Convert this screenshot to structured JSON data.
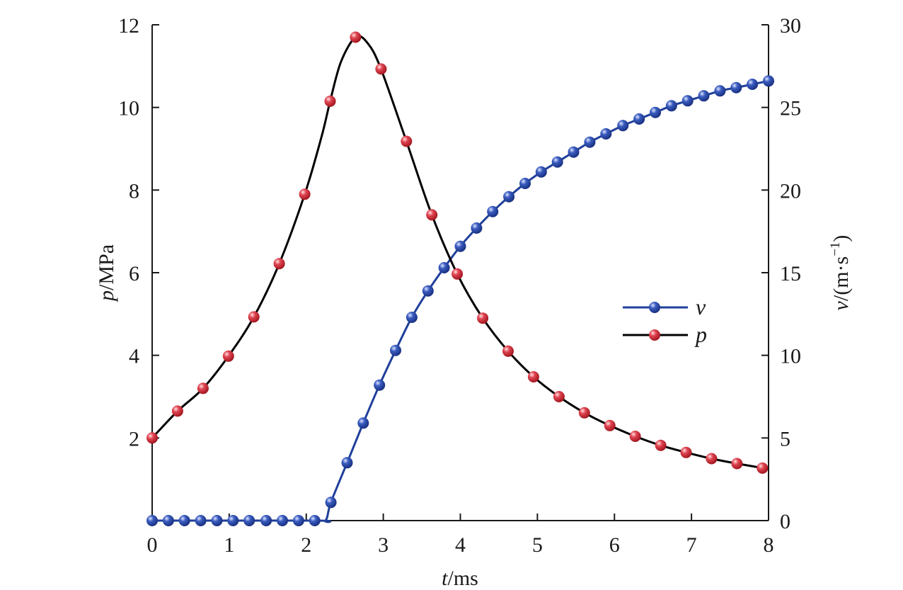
{
  "colors": {
    "v_series": "#1f3f9a",
    "p_series": "#000000",
    "v_marker": "#2448a8",
    "p_marker": "#d02430",
    "axis": "#1a1a1a"
  },
  "chart_data": {
    "type": "line",
    "x_axis": {
      "label_var": "t",
      "label_unit": "/ms",
      "range": [
        0,
        8
      ],
      "ticks": [
        "0",
        "1",
        "2",
        "3",
        "4",
        "5",
        "6",
        "7",
        "8"
      ]
    },
    "y_axis_left": {
      "label_var": "p",
      "label_unit": "/MPa",
      "range": [
        0,
        12
      ],
      "ticks": [
        "2",
        "4",
        "6",
        "8",
        "10",
        "12"
      ]
    },
    "y_axis_right": {
      "label_var": "v",
      "label_unit": "/(m·s",
      "label_sup": "−1",
      "label_close": ")",
      "range": [
        0,
        30
      ],
      "ticks": [
        "0",
        "5",
        "10",
        "15",
        "20",
        "25",
        "30"
      ]
    },
    "legend_position": "center-right",
    "grid": false,
    "series": [
      {
        "name": "v",
        "axis": "right",
        "x": [
          0,
          0.21,
          0.42,
          0.63,
          0.84,
          1.05,
          1.26,
          1.48,
          1.69,
          1.9,
          2.11,
          2.32,
          2.53,
          2.74,
          2.95,
          3.16,
          3.37,
          3.58,
          3.79,
          4.0,
          4.21,
          4.42,
          4.63,
          4.84,
          5.05,
          5.26,
          5.47,
          5.68,
          5.89,
          6.11,
          6.32,
          6.53,
          6.74,
          6.95,
          7.16,
          7.37,
          7.58,
          7.79,
          8.0
        ],
        "y": [
          0,
          0,
          0,
          0,
          0,
          0,
          0,
          0,
          0,
          0,
          0,
          1.1,
          3.5,
          5.9,
          8.2,
          10.3,
          12.3,
          13.9,
          15.3,
          16.6,
          17.7,
          18.7,
          19.6,
          20.4,
          21.1,
          21.7,
          22.3,
          22.9,
          23.4,
          23.9,
          24.3,
          24.7,
          25.1,
          25.4,
          25.7,
          26.0,
          26.2,
          26.4,
          26.6
        ]
      },
      {
        "name": "p",
        "axis": "left",
        "x": [
          0,
          0.33,
          0.66,
          0.99,
          1.32,
          1.65,
          1.98,
          2.31,
          2.64,
          2.97,
          3.3,
          3.63,
          3.96,
          4.29,
          4.62,
          4.95,
          5.28,
          5.61,
          5.94,
          6.27,
          6.6,
          6.93,
          7.26,
          7.59,
          7.92
        ],
        "y": [
          2.0,
          2.65,
          3.2,
          3.98,
          4.93,
          6.22,
          7.9,
          10.15,
          11.7,
          10.93,
          9.18,
          7.4,
          5.97,
          4.9,
          4.1,
          3.48,
          3.0,
          2.61,
          2.3,
          2.04,
          1.82,
          1.65,
          1.5,
          1.38,
          1.27
        ]
      }
    ],
    "curves": {
      "p": {
        "x": [
          0,
          0.33,
          0.66,
          0.99,
          1.32,
          1.65,
          1.98,
          2.2,
          2.31,
          2.45,
          2.64,
          2.8,
          2.97,
          3.3,
          3.63,
          3.96,
          4.29,
          4.62,
          4.95,
          5.28,
          5.61,
          5.94,
          6.27,
          6.6,
          6.93,
          7.26,
          7.59,
          8.0
        ],
        "y": [
          2.0,
          2.65,
          3.2,
          3.98,
          4.93,
          6.22,
          7.9,
          9.3,
          10.15,
          11.1,
          11.7,
          11.55,
          10.93,
          9.18,
          7.4,
          5.97,
          4.9,
          4.1,
          3.48,
          3.0,
          2.61,
          2.3,
          2.04,
          1.82,
          1.65,
          1.5,
          1.38,
          1.25
        ]
      },
      "v": {
        "x": [
          0,
          2.11,
          2.25,
          2.32,
          2.53,
          2.74,
          2.95,
          3.16,
          3.37,
          3.58,
          3.79,
          4.0,
          4.21,
          4.42,
          4.63,
          4.84,
          5.05,
          5.26,
          5.47,
          5.68,
          5.89,
          6.11,
          6.32,
          6.53,
          6.74,
          6.95,
          7.16,
          7.37,
          7.58,
          7.79,
          8.0
        ],
        "y": [
          0,
          0,
          0,
          1.1,
          3.5,
          5.9,
          8.2,
          10.3,
          12.3,
          13.9,
          15.3,
          16.6,
          17.7,
          18.7,
          19.6,
          20.4,
          21.1,
          21.7,
          22.3,
          22.9,
          23.4,
          23.9,
          24.3,
          24.7,
          25.1,
          25.4,
          25.7,
          26.0,
          26.2,
          26.4,
          26.6
        ]
      }
    },
    "legend": [
      {
        "series": "v",
        "label": "v"
      },
      {
        "series": "p",
        "label": "p"
      }
    ]
  }
}
